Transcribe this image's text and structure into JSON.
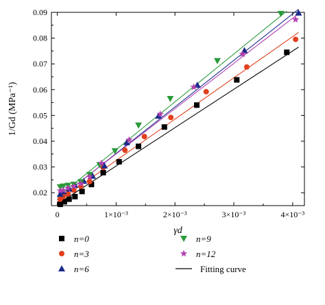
{
  "chart_data": {
    "type": "scatter",
    "x_label": "γd",
    "y_label": "1/Gd (MPa⁻¹)",
    "xlim": [
      -0.0001,
      0.0042
    ],
    "ylim": [
      0.015,
      0.09
    ],
    "x_ticks": [
      0,
      0.001,
      0.002,
      0.003,
      0.004
    ],
    "x_tick_labels": [
      "0",
      "1×10⁻³",
      "2×10⁻³",
      "3×10⁻³",
      "4×10⁻³"
    ],
    "y_ticks": [
      0.02,
      0.03,
      0.04,
      0.05,
      0.06,
      0.07,
      0.08,
      0.09
    ],
    "y_tick_labels": [
      "0.02",
      "0.03",
      "0.04",
      "0.05",
      "0.06",
      "0.07",
      "0.08",
      "0.09"
    ],
    "grid": false,
    "legend_position": "bottom",
    "series": [
      {
        "name": "n=0",
        "marker": "square",
        "color": "#000000",
        "x": [
          5e-05,
          0.00012,
          0.0002,
          0.0003,
          0.00042,
          0.00058,
          0.00078,
          0.00105,
          0.00138,
          0.00182,
          0.00237,
          0.00305,
          0.0039
        ],
        "y": [
          0.0155,
          0.0165,
          0.0175,
          0.0185,
          0.0205,
          0.0232,
          0.0278,
          0.032,
          0.038,
          0.0455,
          0.054,
          0.0638,
          0.0745
        ],
        "fit": {
          "x": [
            0,
            0.0041
          ],
          "y": [
            0.0155,
            0.0765
          ]
        }
      },
      {
        "name": "n=3",
        "marker": "circle",
        "color": "#e0401c",
        "x": [
          5e-05,
          0.0001,
          0.00018,
          0.00028,
          0.0004,
          0.00055,
          0.00078,
          0.00115,
          0.00148,
          0.00193,
          0.00253,
          0.00322,
          0.00405
        ],
        "y": [
          0.0175,
          0.0185,
          0.0195,
          0.021,
          0.0225,
          0.0243,
          0.0298,
          0.0365,
          0.0418,
          0.0492,
          0.0592,
          0.0688,
          0.0795
        ],
        "fit": {
          "x": [
            0,
            0.0041
          ],
          "y": [
            0.0165,
            0.0822
          ]
        }
      },
      {
        "name": "n=6",
        "marker": "triangle-up",
        "color": "#1a2a8a",
        "x": [
          5e-05,
          0.0001,
          0.0002,
          0.0003,
          0.00045,
          0.0006,
          0.0008,
          0.00118,
          0.00172,
          0.00238,
          0.00318,
          0.0041
        ],
        "y": [
          0.0195,
          0.0205,
          0.0215,
          0.023,
          0.0245,
          0.0265,
          0.0305,
          0.0395,
          0.0498,
          0.0618,
          0.0752,
          0.0898
        ],
        "fit": {
          "x": [
            0,
            0.0041
          ],
          "y": [
            0.0172,
            0.0912
          ]
        }
      },
      {
        "name": "n=9",
        "marker": "triangle-down",
        "color": "#2a9a3a",
        "x": [
          5e-05,
          0.0001,
          0.00018,
          0.00028,
          0.0004,
          0.00055,
          0.00072,
          0.00098,
          0.00138,
          0.00192,
          0.00272,
          0.0038
        ],
        "y": [
          0.0222,
          0.0225,
          0.0228,
          0.0232,
          0.0242,
          0.027,
          0.0308,
          0.0362,
          0.0462,
          0.0565,
          0.0712,
          0.0895
        ],
        "fit": {
          "x": [
            0,
            0.0039
          ],
          "y": [
            0.0182,
            0.0905
          ]
        }
      },
      {
        "name": "n=12",
        "marker": "star",
        "color": "#b040b0",
        "x": [
          5e-05,
          0.0001,
          0.00018,
          0.00028,
          0.0004,
          0.00055,
          0.00075,
          0.00122,
          0.00175,
          0.00232,
          0.00315,
          0.00405
        ],
        "y": [
          0.0208,
          0.021,
          0.0218,
          0.0225,
          0.0235,
          0.0262,
          0.0315,
          0.0405,
          0.0505,
          0.061,
          0.0738,
          0.0872
        ],
        "fit": {
          "x": [
            0,
            0.0041
          ],
          "y": [
            0.0175,
            0.0895
          ]
        }
      }
    ],
    "legend": {
      "entries": [
        "n=0",
        "n=3",
        "n=6",
        "n=9",
        "n=12"
      ],
      "fit_label": "Fitting curve"
    }
  }
}
